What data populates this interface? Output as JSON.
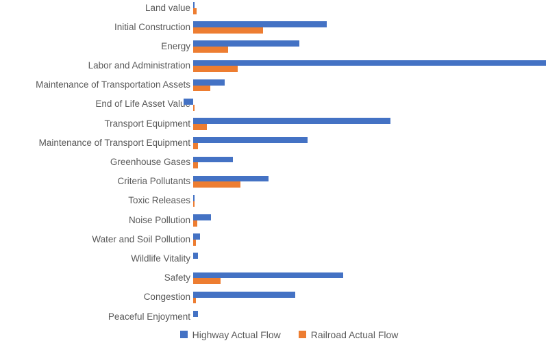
{
  "chart_data": {
    "type": "bar",
    "orientation": "horizontal",
    "title": "",
    "xlabel": "",
    "ylabel": "",
    "grid": false,
    "legend_position": "bottom",
    "xlim": [
      -5,
      100
    ],
    "categories": [
      "Land value",
      "Initial Construction",
      "Energy",
      "Labor and Administration",
      "Maintenance of Transportation Assets",
      "End of Life Asset Value",
      "Transport Equipment",
      "Maintenance of Transport Equipment",
      "Greenhouse Gases",
      "Criteria Pollutants",
      "Toxic Releases",
      "Noise Pollution",
      "Water and Soil Pollution",
      "Wildlife Vitality",
      "Safety",
      "Congestion",
      "Peaceful Enjoyment"
    ],
    "series": [
      {
        "name": "Highway Actual Flow",
        "color": "#4472C4",
        "values": [
          0.4,
          37.9,
          30.1,
          100,
          8.9,
          -2.7,
          55.9,
          32.4,
          11.3,
          21.4,
          0.3,
          5.0,
          1.9,
          1.4,
          42.5,
          28.9,
          1.4
        ]
      },
      {
        "name": "Railroad Actual Flow",
        "color": "#ED7D31",
        "values": [
          1.0,
          19.8,
          9.9,
          12.6,
          4.9,
          0.4,
          3.9,
          1.4,
          1.4,
          13.4,
          0.3,
          1.2,
          0.8,
          0,
          7.8,
          0.8,
          0
        ]
      }
    ],
    "colors": {
      "highway": "#4472C4",
      "railroad": "#ED7D31",
      "label_text": "#595959",
      "background": "#FFFFFF"
    }
  }
}
